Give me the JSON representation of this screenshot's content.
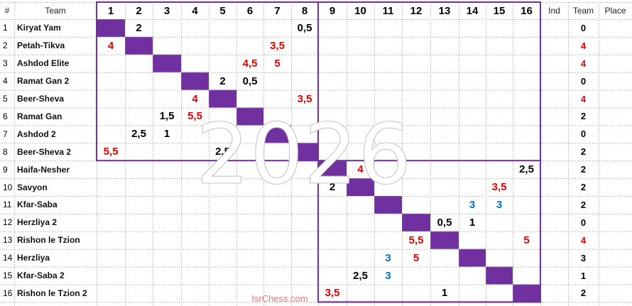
{
  "colors": {
    "win": "#e00000",
    "draw": "#000000",
    "blue": "#0070c0",
    "diagonal": "#7030a0",
    "frame": "#7030a0"
  },
  "headers": {
    "num": "#",
    "team": "Team",
    "columns": [
      "1",
      "2",
      "3",
      "4",
      "5",
      "6",
      "7",
      "8",
      "9",
      "10",
      "11",
      "12",
      "13",
      "14",
      "15",
      "16"
    ],
    "ind": "Ind",
    "team_points": "Team",
    "place": "Place"
  },
  "rows": [
    {
      "num": "1",
      "name": "Kiryat Yam",
      "points": "0",
      "points_color": "#000000"
    },
    {
      "num": "2",
      "name": "Petah-Tikva",
      "points": "4",
      "points_color": "#e00000"
    },
    {
      "num": "3",
      "name": "Ashdod Elite",
      "points": "4",
      "points_color": "#e00000"
    },
    {
      "num": "4",
      "name": "Ramat Gan 2",
      "points": "0",
      "points_color": "#000000"
    },
    {
      "num": "5",
      "name": "Beer-Sheva",
      "points": "4",
      "points_color": "#e00000"
    },
    {
      "num": "6",
      "name": "Ramat Gan",
      "points": "2",
      "points_color": "#000000"
    },
    {
      "num": "7",
      "name": "Ashdod 2",
      "points": "0",
      "points_color": "#000000"
    },
    {
      "num": "8",
      "name": "Beer-Sheva 2",
      "points": "2",
      "points_color": "#000000"
    },
    {
      "num": "9",
      "name": "Haifa-Nesher",
      "points": "2",
      "points_color": "#000000"
    },
    {
      "num": "10",
      "name": "Savyon",
      "points": "2",
      "points_color": "#000000"
    },
    {
      "num": "11",
      "name": "Kfar-Saba",
      "points": "2",
      "points_color": "#000000"
    },
    {
      "num": "12",
      "name": "Herzliya 2",
      "points": "0",
      "points_color": "#000000"
    },
    {
      "num": "13",
      "name": "Rishon le Tzion",
      "points": "4",
      "points_color": "#e00000"
    },
    {
      "num": "14",
      "name": "Herzliya",
      "points": "3",
      "points_color": "#000000"
    },
    {
      "num": "15",
      "name": "Kfar-Saba 2",
      "points": "1",
      "points_color": "#000000"
    },
    {
      "num": "16",
      "name": "Rishon le Tzion 2",
      "points": "2",
      "points_color": "#000000"
    }
  ],
  "results": [
    {
      "row": 1,
      "col": 2,
      "value": "2",
      "color": "#000000"
    },
    {
      "row": 1,
      "col": 8,
      "value": "0,5",
      "color": "#000000"
    },
    {
      "row": 2,
      "col": 1,
      "value": "4",
      "color": "#e00000"
    },
    {
      "row": 2,
      "col": 7,
      "value": "3,5",
      "color": "#e00000"
    },
    {
      "row": 3,
      "col": 6,
      "value": "4,5",
      "color": "#e00000"
    },
    {
      "row": 3,
      "col": 7,
      "value": "5",
      "color": "#e00000"
    },
    {
      "row": 4,
      "col": 5,
      "value": "2",
      "color": "#000000"
    },
    {
      "row": 4,
      "col": 6,
      "value": "0,5",
      "color": "#000000"
    },
    {
      "row": 5,
      "col": 4,
      "value": "4",
      "color": "#e00000"
    },
    {
      "row": 5,
      "col": 8,
      "value": "3,5",
      "color": "#e00000"
    },
    {
      "row": 6,
      "col": 3,
      "value": "1,5",
      "color": "#000000"
    },
    {
      "row": 6,
      "col": 4,
      "value": "5,5",
      "color": "#e00000"
    },
    {
      "row": 7,
      "col": 2,
      "value": "2,5",
      "color": "#000000"
    },
    {
      "row": 7,
      "col": 3,
      "value": "1",
      "color": "#000000"
    },
    {
      "row": 8,
      "col": 1,
      "value": "5,5",
      "color": "#e00000"
    },
    {
      "row": 8,
      "col": 5,
      "value": "2,5",
      "color": "#000000"
    },
    {
      "row": 9,
      "col": 10,
      "value": "4",
      "color": "#e00000"
    },
    {
      "row": 9,
      "col": 16,
      "value": "2,5",
      "color": "#000000"
    },
    {
      "row": 10,
      "col": 9,
      "value": "2",
      "color": "#000000"
    },
    {
      "row": 10,
      "col": 15,
      "value": "3,5",
      "color": "#e00000"
    },
    {
      "row": 11,
      "col": 14,
      "value": "3",
      "color": "#0070c0"
    },
    {
      "row": 11,
      "col": 15,
      "value": "3",
      "color": "#0070c0"
    },
    {
      "row": 12,
      "col": 13,
      "value": "0,5",
      "color": "#000000"
    },
    {
      "row": 12,
      "col": 14,
      "value": "1",
      "color": "#000000"
    },
    {
      "row": 13,
      "col": 12,
      "value": "5,5",
      "color": "#e00000"
    },
    {
      "row": 13,
      "col": 16,
      "value": "5",
      "color": "#e00000"
    },
    {
      "row": 14,
      "col": 11,
      "value": "3",
      "color": "#0070c0"
    },
    {
      "row": 14,
      "col": 12,
      "value": "5",
      "color": "#e00000"
    },
    {
      "row": 15,
      "col": 10,
      "value": "2,5",
      "color": "#000000"
    },
    {
      "row": 15,
      "col": 11,
      "value": "3",
      "color": "#0070c0"
    },
    {
      "row": 16,
      "col": 9,
      "value": "3,5",
      "color": "#e00000"
    },
    {
      "row": 16,
      "col": 13,
      "value": "1",
      "color": "#000000"
    }
  ],
  "watermark": "2026",
  "footer": "IsrChess.com"
}
